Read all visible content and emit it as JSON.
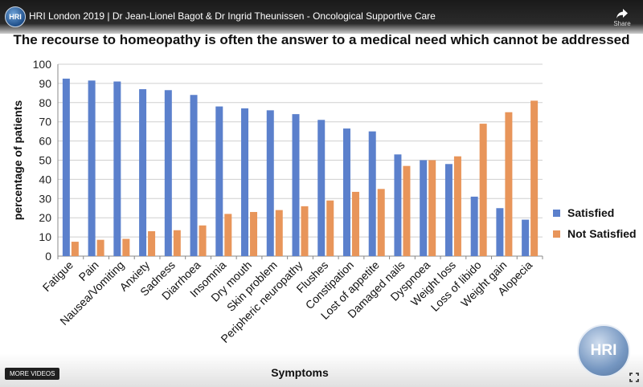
{
  "player": {
    "video_title": "HRI London 2019 | Dr Jean-Lionel Bagot & Dr Ingrid Theunissen - Oncological Supportive Care",
    "channel_logo_text": "HRI",
    "share_label": "Share",
    "more_videos_label": "MORE VIDEOS",
    "watermark_text": "HRI",
    "icons": [
      "share-icon",
      "fullscreen-icon"
    ]
  },
  "slide": {
    "title": "The recourse to homeopathy is often the answer to a medical need which cannot be addressed"
  },
  "chart_data": {
    "type": "bar",
    "xlabel": "Symptoms",
    "ylabel": "percentage of patients",
    "ylim": [
      0,
      100
    ],
    "yticks": [
      0,
      10,
      20,
      30,
      40,
      50,
      60,
      70,
      80,
      90,
      100
    ],
    "grid": true,
    "legend_position": "right",
    "categories": [
      "Fatigue",
      "Pain",
      "Nausea/Vomiting",
      "Anxiety",
      "Sadness",
      "Diarrhoea",
      "Insomnia",
      "Dry mouth",
      "Skin problem",
      "Peripheric neuropathy",
      "Flushes",
      "Constipation",
      "Lost of appetite",
      "Damaged nails",
      "Dyspnoea",
      "Weight loss",
      "Loss of libido",
      "Weight gain",
      "Alopecia"
    ],
    "series": [
      {
        "name": "Satisfied",
        "color": "#5b80cc",
        "values": [
          92.5,
          91.5,
          91,
          87,
          86.5,
          84,
          78,
          77,
          76,
          74,
          71,
          66.5,
          65,
          53,
          50,
          48,
          31,
          25,
          19
        ]
      },
      {
        "name": "Not Satisfied",
        "color": "#e8955a",
        "values": [
          7.5,
          8.5,
          9,
          13,
          13.5,
          16,
          22,
          23,
          24,
          26,
          29,
          33.5,
          35,
          47,
          50,
          52,
          69,
          75,
          81
        ]
      }
    ]
  }
}
